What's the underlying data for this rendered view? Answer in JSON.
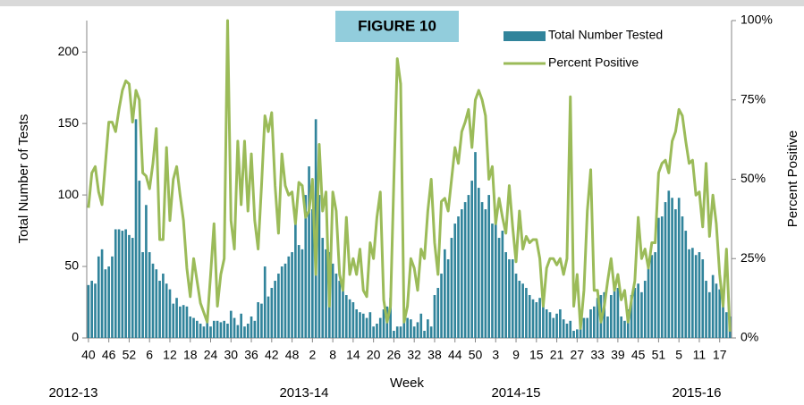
{
  "chart_data": {
    "type": "bar",
    "title": "FIGURE 10",
    "x_label": "Week",
    "y_label": "Total Number of Tests",
    "y2_label": "Percent Positive",
    "annotations": [
      "2012-13",
      "2013-14",
      "2014-15",
      "2015-16"
    ],
    "legend": "top-right",
    "categories": [
      "40",
      null,
      null,
      null,
      null,
      null,
      "46",
      null,
      null,
      null,
      null,
      null,
      "52",
      null,
      null,
      null,
      null,
      null,
      "6",
      null,
      null,
      null,
      null,
      null,
      "12",
      null,
      null,
      null,
      null,
      null,
      "18",
      null,
      null,
      null,
      null,
      null,
      "24",
      null,
      null,
      null,
      null,
      null,
      "30",
      null,
      null,
      null,
      null,
      null,
      "36",
      null,
      null,
      null,
      null,
      null,
      "42",
      null,
      null,
      null,
      null,
      null,
      "48",
      null,
      null,
      null,
      null,
      null,
      "2",
      null,
      null,
      null,
      null,
      null,
      "8",
      null,
      null,
      null,
      null,
      null,
      "14",
      null,
      null,
      null,
      null,
      null,
      "20",
      null,
      null,
      null,
      null,
      null,
      "26",
      null,
      null,
      null,
      null,
      null,
      "32",
      null,
      null,
      null,
      null,
      null,
      "38",
      null,
      null,
      null,
      null,
      null,
      "44",
      null,
      null,
      null,
      null,
      null,
      "50",
      null,
      null,
      null,
      null,
      null,
      "3",
      null,
      null,
      null,
      null,
      null,
      "9",
      null,
      null,
      null,
      null,
      null,
      "15",
      null,
      null,
      null,
      null,
      null,
      "21",
      null,
      null,
      null,
      null,
      null,
      "27",
      null,
      null,
      null,
      null,
      null,
      "33",
      null,
      null,
      null,
      null,
      null,
      "39",
      null,
      null,
      null,
      null,
      null,
      "45",
      null,
      null,
      null,
      null,
      null,
      "51",
      null,
      null,
      null,
      null,
      null,
      "5",
      null,
      null,
      null,
      null,
      null,
      "11",
      null,
      null,
      null,
      null,
      null,
      "17",
      null,
      null,
      null
    ],
    "series": [
      {
        "name": "Total Number Tested",
        "type": "bar",
        "color": "#31849b",
        "values": [
          37,
          40,
          38,
          57,
          62,
          48,
          50,
          57,
          76,
          76,
          75,
          76,
          72,
          70,
          153,
          110,
          60,
          93,
          60,
          52,
          48,
          40,
          45,
          38,
          34,
          24,
          28,
          22,
          23,
          22,
          15,
          14,
          12,
          10,
          8,
          13,
          8,
          12,
          12,
          11,
          12,
          10,
          19,
          14,
          9,
          17,
          8,
          10,
          15,
          12,
          25,
          24,
          50,
          29,
          35,
          40,
          45,
          50,
          52,
          57,
          60,
          80,
          65,
          62,
          100,
          120,
          90,
          153,
          100,
          70,
          62,
          60,
          52,
          45,
          40,
          38,
          30,
          27,
          25,
          20,
          18,
          17,
          14,
          18,
          8,
          10,
          14,
          20,
          22,
          28,
          5,
          8,
          8,
          12,
          14,
          13,
          8,
          11,
          17,
          5,
          13,
          8,
          30,
          35,
          45,
          62,
          55,
          70,
          80,
          85,
          90,
          95,
          100,
          110,
          130,
          105,
          95,
          90,
          100,
          80,
          85,
          70,
          75,
          60,
          55,
          55,
          45,
          40,
          38,
          35,
          30,
          27,
          25,
          28,
          25,
          20,
          18,
          14,
          17,
          20,
          13,
          10,
          12,
          5,
          6,
          8,
          14,
          14,
          20,
          22,
          28,
          30,
          32,
          15,
          30,
          38,
          35,
          15,
          12,
          20,
          30,
          35,
          38,
          32,
          40,
          52,
          58,
          60,
          84,
          85,
          95,
          103,
          98,
          90,
          98,
          85,
          75,
          62,
          63,
          58,
          60,
          55,
          40,
          32,
          44,
          38,
          34,
          28,
          18,
          15
        ]
      },
      {
        "name": "Percent Positive",
        "type": "line",
        "axis": "y2",
        "color": "#9bbb59",
        "values": [
          41,
          52,
          54,
          46,
          42,
          55,
          68,
          68,
          65,
          72,
          78,
          81,
          80,
          68,
          78,
          75,
          52,
          51,
          47,
          55,
          66,
          31,
          31,
          60,
          37,
          50,
          54,
          45,
          37,
          22,
          13,
          25,
          18,
          11,
          8,
          5,
          20,
          36,
          10,
          20,
          25,
          100,
          37,
          28,
          62,
          42,
          62,
          40,
          58,
          37,
          28,
          48,
          70,
          65,
          71,
          48,
          33,
          58,
          48,
          45,
          46,
          36,
          49,
          48,
          38,
          40,
          50,
          20,
          61,
          40,
          46,
          10,
          46,
          40,
          20,
          15,
          38,
          20,
          25,
          20,
          28,
          15,
          13,
          30,
          25,
          38,
          46,
          12,
          5,
          10,
          50,
          88,
          80,
          5,
          10,
          25,
          22,
          15,
          28,
          25,
          40,
          50,
          30,
          20,
          43,
          44,
          40,
          50,
          60,
          55,
          65,
          68,
          72,
          60,
          75,
          78,
          75,
          70,
          50,
          54,
          36,
          44,
          38,
          33,
          48,
          35,
          24,
          40,
          28,
          32,
          30,
          31,
          31,
          25,
          10,
          22,
          25,
          25,
          23,
          25,
          20,
          25,
          76,
          10,
          20,
          3,
          15,
          40,
          53,
          15,
          15,
          5,
          10,
          18,
          25,
          15,
          20,
          12,
          15,
          5,
          12,
          18,
          38,
          25,
          28,
          22,
          30,
          30,
          52,
          55,
          56,
          52,
          62,
          65,
          72,
          70,
          62,
          55,
          56,
          45,
          46,
          35,
          55,
          32,
          45,
          36,
          20,
          10,
          28,
          2
        ]
      }
    ],
    "ylim": [
      0,
      222
    ],
    "yticks": [
      0,
      50,
      100,
      150,
      200
    ],
    "y2lim": [
      0,
      100
    ],
    "y2ticks": [
      {
        "value": 0,
        "label": "0%"
      },
      {
        "value": 25,
        "label": "25%"
      },
      {
        "value": 50,
        "label": "50%"
      },
      {
        "value": 75,
        "label": "75%"
      },
      {
        "value": 100,
        "label": "100%"
      }
    ],
    "grid": false
  }
}
